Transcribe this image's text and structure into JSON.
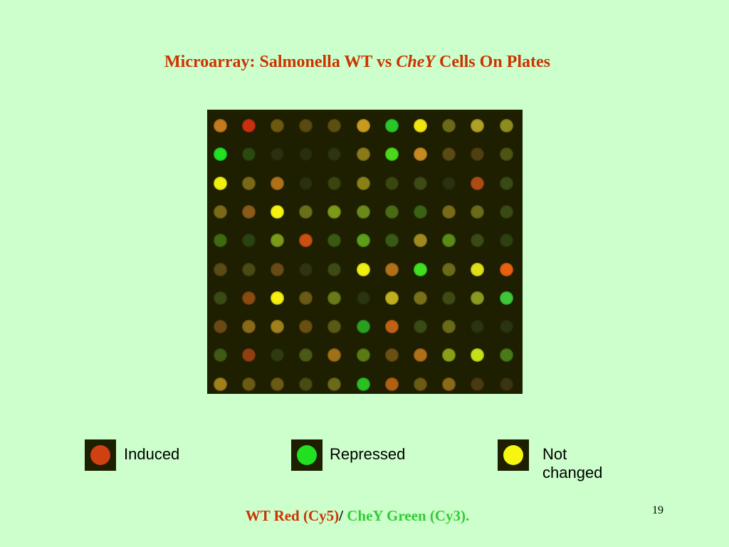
{
  "title": {
    "prefix": "Microarray: Salmonella WT vs ",
    "italic": "CheY",
    "suffix": " Cells On Plates"
  },
  "array": {
    "rows": 10,
    "cols": 11,
    "colors": [
      [
        "#c47a1e",
        "#c83010",
        "#6d5a10",
        "#5a4a10",
        "#5c5010",
        "#c89a20",
        "#28c828",
        "#f2e610",
        "#6a6a18",
        "#b0a028",
        "#8c8c20"
      ],
      [
        "#22e022",
        "#2a4a10",
        "#2a3010",
        "#2a2e10",
        "#2e3410",
        "#8a7a18",
        "#4ad81a",
        "#c88a20",
        "#5a4a14",
        "#4e4010",
        "#4e5414"
      ],
      [
        "#f0f010",
        "#7a6a18",
        "#b07018",
        "#2a3010",
        "#3a4410",
        "#8a8018",
        "#3a4610",
        "#3e4a14",
        "#2a3010",
        "#b04a14",
        "#3a4a14"
      ],
      [
        "#7a6a18",
        "#8a5a18",
        "#f6f210",
        "#6a7018",
        "#7a9a18",
        "#6a8a18",
        "#4a6a14",
        "#3a6214",
        "#7a6a18",
        "#6a6a18",
        "#3a4a14"
      ],
      [
        "#3e6a14",
        "#2a4210",
        "#7a9a18",
        "#c85010",
        "#3a5a14",
        "#5aa018",
        "#3a5a14",
        "#a08a20",
        "#5a8a18",
        "#3a4a14",
        "#2e4010"
      ],
      [
        "#5a4a14",
        "#4a4a14",
        "#6a4a14",
        "#2e3410",
        "#3e4a14",
        "#f0f010",
        "#b07018",
        "#40e020",
        "#6a6a18",
        "#e0e018",
        "#e86010"
      ],
      [
        "#3a4a14",
        "#8a4a10",
        "#f4f010",
        "#6a5a14",
        "#6a7a18",
        "#2a3410",
        "#c0b020",
        "#7a7018",
        "#3e4a14",
        "#8a9a20",
        "#3ec838"
      ],
      [
        "#6a4a14",
        "#8a6a18",
        "#a0801a",
        "#6a5010",
        "#5a5a14",
        "#2aa020",
        "#c06014",
        "#3a4a14",
        "#6a6a18",
        "#2a3410",
        "#2a3410"
      ],
      [
        "#3e5a14",
        "#904010",
        "#2e3a10",
        "#4a5a14",
        "#a07018",
        "#5a7a14",
        "#6a5014",
        "#b07018",
        "#8aa018",
        "#c8e018",
        "#4a7a18"
      ],
      [
        "#a0801a",
        "#6a5a14",
        "#6a5a14",
        "#4a4a14",
        "#6a6a18",
        "#2ac020",
        "#b06014",
        "#6a5a14",
        "#8a6a18",
        "#4a3a10",
        "#3a3410"
      ]
    ]
  },
  "legend": [
    {
      "label": "Induced",
      "color": "#d04010"
    },
    {
      "label": "Repressed",
      "color": "#20e020"
    },
    {
      "label": "Not changed",
      "color": "#f6f610"
    }
  ],
  "footer": {
    "red": "WT Red  (Cy5)",
    "slash": "/ ",
    "green": "CheY Green (Cy3)."
  },
  "page_number": "19"
}
